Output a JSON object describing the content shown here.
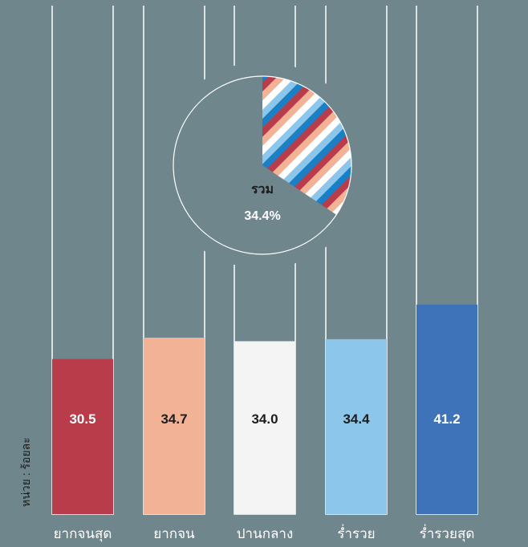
{
  "chart_data": {
    "type": "bar",
    "categories": [
      "ยากจนสุด",
      "ยากจน",
      "ปานกลาง",
      "ร่ำรวย",
      "ร่ำรวยสุด"
    ],
    "values": [
      30.5,
      34.7,
      34.0,
      34.4,
      41.2
    ],
    "value_labels": [
      "30.5",
      "34.7",
      "34.0",
      "34.4",
      "41.2"
    ],
    "ylim": [
      0,
      100
    ],
    "ylabel": "หน่วย : ร้อยละ",
    "colors": [
      "#b93c4b",
      "#f1b295",
      "#f4f4f4",
      "#8cc6eb",
      "#3f73b9"
    ],
    "label_colors": [
      "#ffffff",
      "#1c1c1c",
      "#1c1c1c",
      "#1c1c1c",
      "#ffffff"
    ],
    "pie": {
      "label": "รวม",
      "value": 34.4,
      "value_label": "34.4%",
      "stripe_colors": [
        "#ffffff",
        "#8cc6eb",
        "#1a7fc4",
        "#b93c4b",
        "#f1b295"
      ]
    },
    "background": "#6f868d"
  }
}
